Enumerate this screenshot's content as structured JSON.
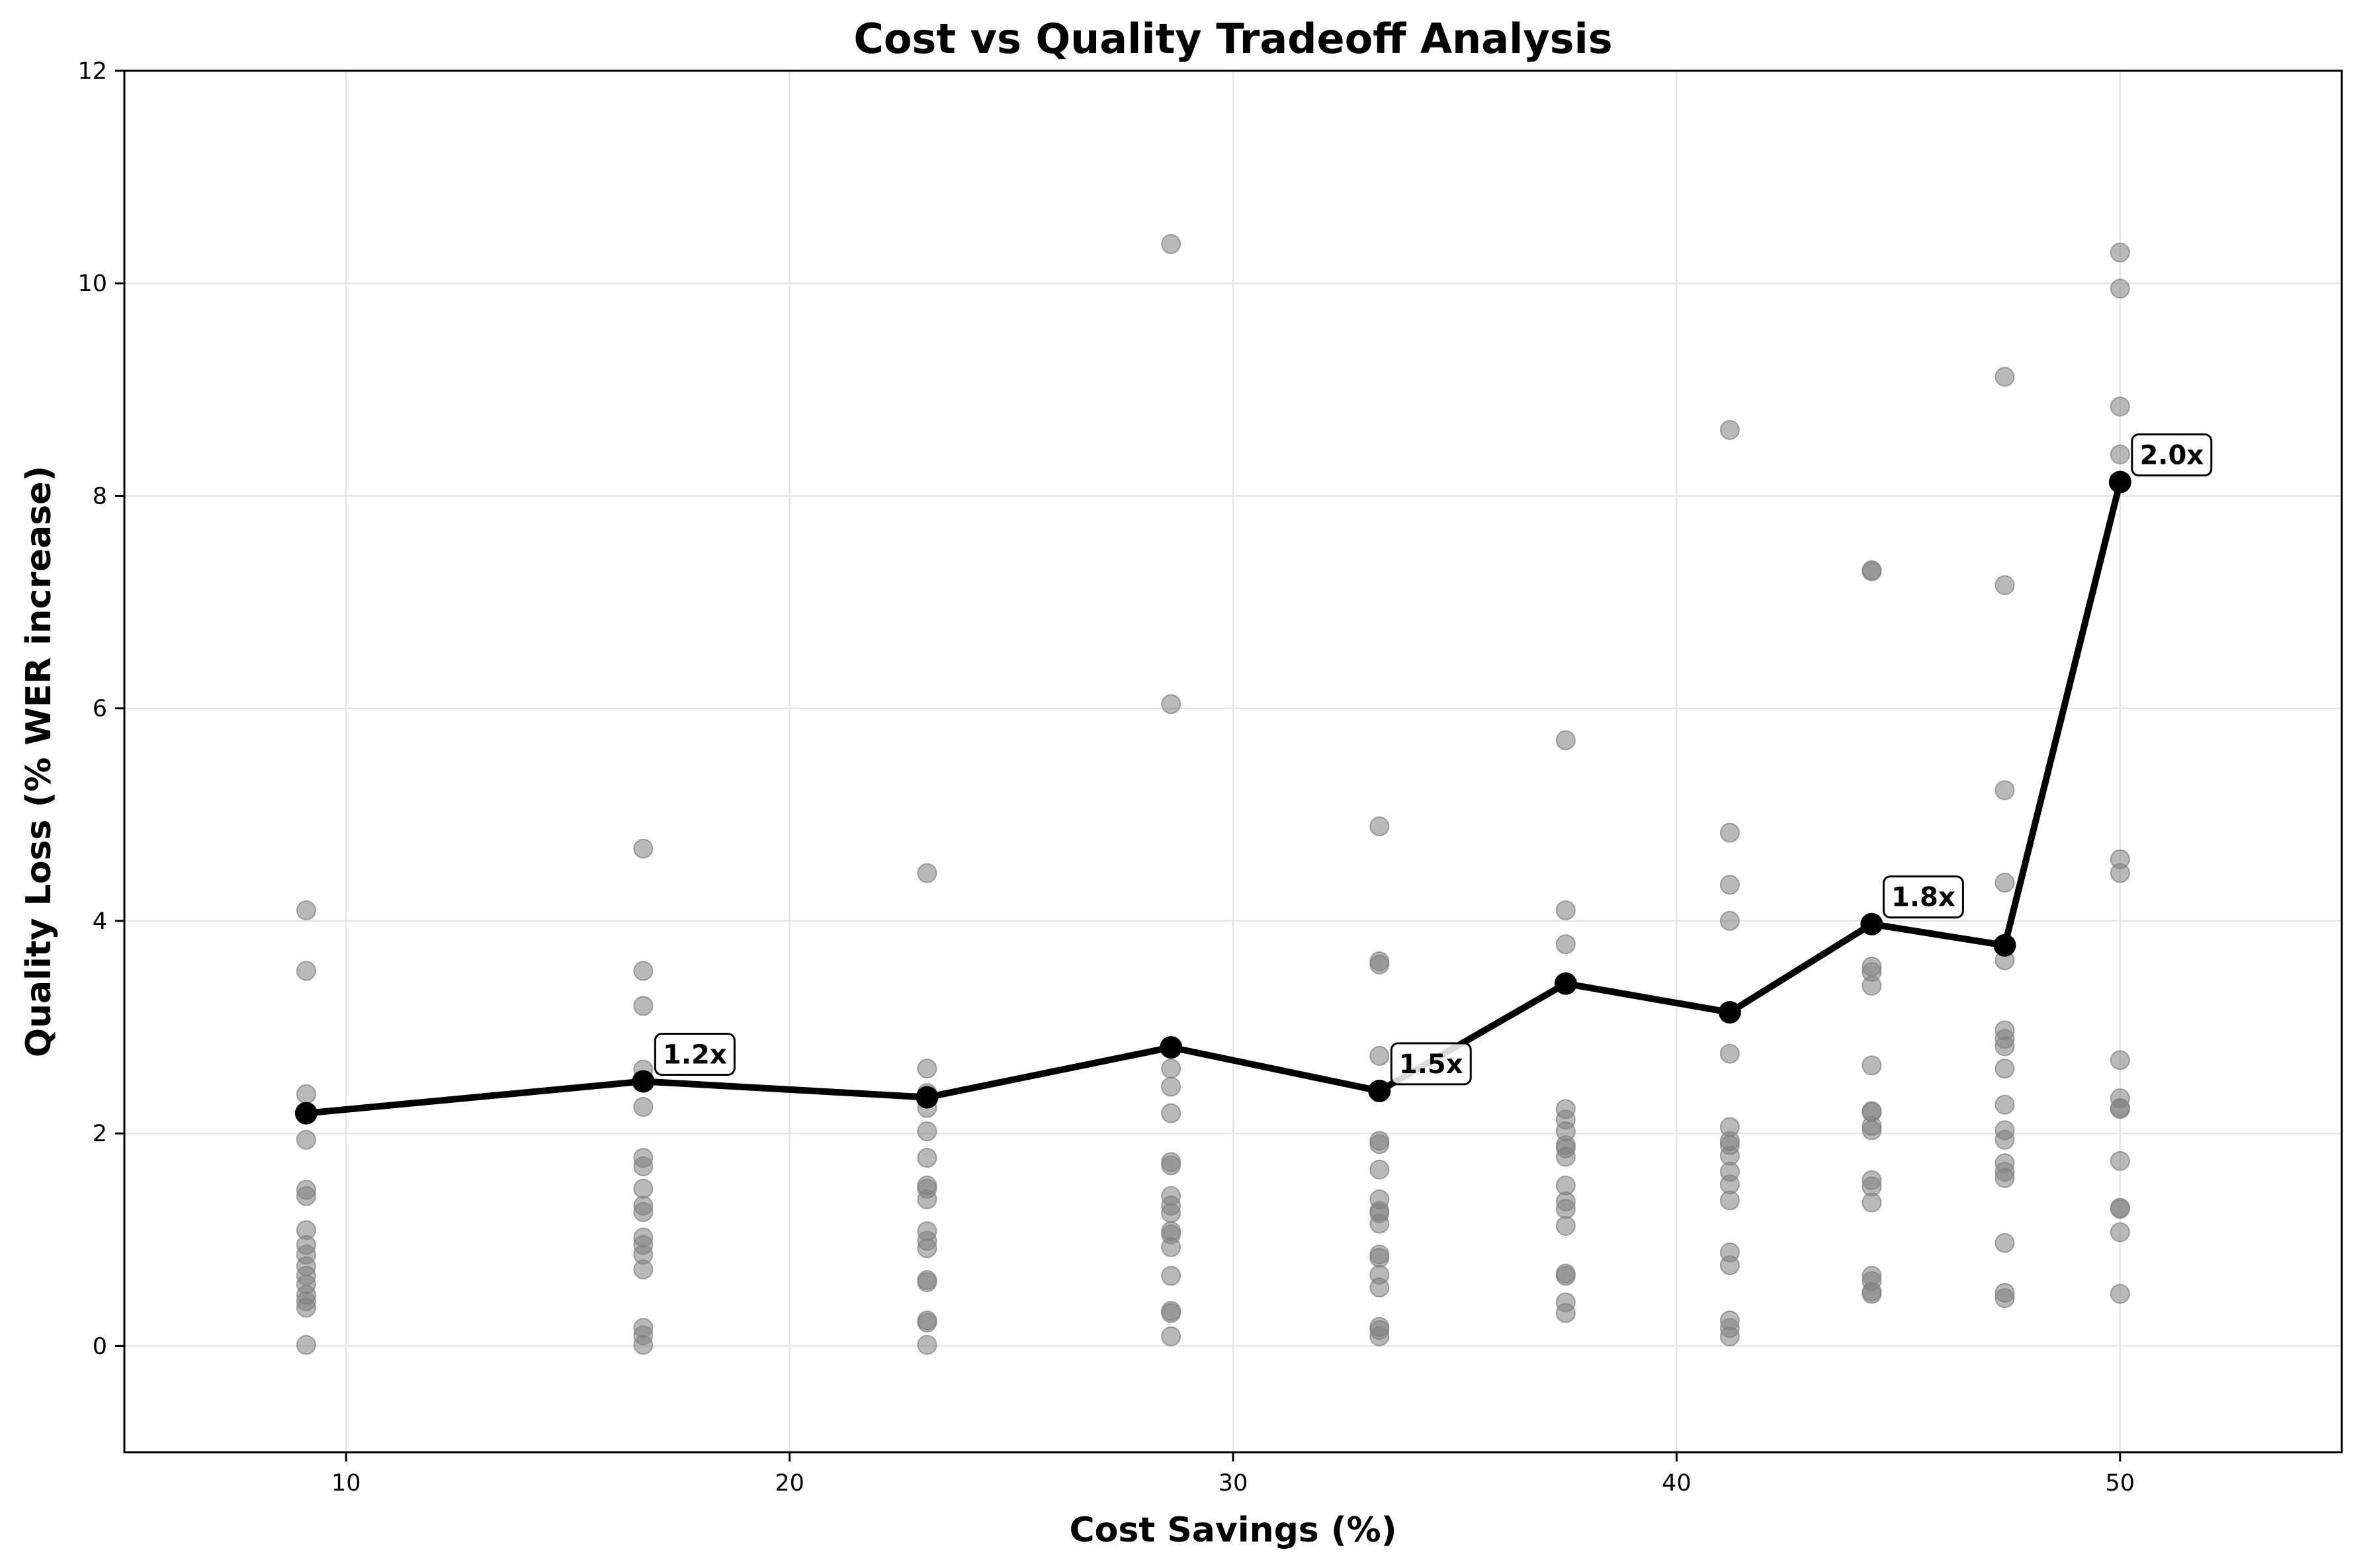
{
  "chart_data": {
    "type": "scatter",
    "title": "Cost vs Quality Tradeoff Analysis",
    "xlabel": "Cost Savings (%)",
    "ylabel": "Quality Loss (% WER increase)",
    "xlim": [
      5,
      55
    ],
    "ylim": [
      -1,
      12
    ],
    "xticks": [
      10,
      20,
      30,
      40,
      50
    ],
    "yticks": [
      0,
      2,
      4,
      6,
      8,
      10,
      12
    ],
    "grid": true,
    "legend": "none",
    "colors": {
      "scatter": "#808080",
      "line": "#000000",
      "grid": "#e5e5e5"
    },
    "series": [
      {
        "type": "scatter",
        "points": [
          [
            9.1,
            4.1
          ],
          [
            9.1,
            3.53
          ],
          [
            9.1,
            2.37
          ],
          [
            9.1,
            1.94
          ],
          [
            9.1,
            1.47
          ],
          [
            9.1,
            1.41
          ],
          [
            9.1,
            1.09
          ],
          [
            9.1,
            0.95
          ],
          [
            9.1,
            0.86
          ],
          [
            9.1,
            0.75
          ],
          [
            9.1,
            0.66
          ],
          [
            9.1,
            0.58
          ],
          [
            9.1,
            0.48
          ],
          [
            9.1,
            0.42
          ],
          [
            9.1,
            0.36
          ],
          [
            9.1,
            0.01
          ],
          [
            16.7,
            4.68
          ],
          [
            16.7,
            3.53
          ],
          [
            16.7,
            3.2
          ],
          [
            16.7,
            2.6
          ],
          [
            16.7,
            2.25
          ],
          [
            16.7,
            1.77
          ],
          [
            16.7,
            1.69
          ],
          [
            16.7,
            1.48
          ],
          [
            16.7,
            1.32
          ],
          [
            16.7,
            1.26
          ],
          [
            16.7,
            1.02
          ],
          [
            16.7,
            0.95
          ],
          [
            16.7,
            0.86
          ],
          [
            16.7,
            0.72
          ],
          [
            16.7,
            0.17
          ],
          [
            16.7,
            0.1
          ],
          [
            16.7,
            0.01
          ],
          [
            23.1,
            4.45
          ],
          [
            23.1,
            2.61
          ],
          [
            23.1,
            2.38
          ],
          [
            23.1,
            2.24
          ],
          [
            23.1,
            2.02
          ],
          [
            23.1,
            1.77
          ],
          [
            23.1,
            1.51
          ],
          [
            23.1,
            1.48
          ],
          [
            23.1,
            1.38
          ],
          [
            23.1,
            1.08
          ],
          [
            23.1,
            0.99
          ],
          [
            23.1,
            0.92
          ],
          [
            23.1,
            0.62
          ],
          [
            23.1,
            0.6
          ],
          [
            23.1,
            0.24
          ],
          [
            23.1,
            0.22
          ],
          [
            23.1,
            0.01
          ],
          [
            28.6,
            10.37
          ],
          [
            28.6,
            6.04
          ],
          [
            28.6,
            2.61
          ],
          [
            28.6,
            2.44
          ],
          [
            28.6,
            2.19
          ],
          [
            28.6,
            1.73
          ],
          [
            28.6,
            1.7
          ],
          [
            28.6,
            1.41
          ],
          [
            28.6,
            1.32
          ],
          [
            28.6,
            1.25
          ],
          [
            28.6,
            1.08
          ],
          [
            28.6,
            1.05
          ],
          [
            28.6,
            0.93
          ],
          [
            28.6,
            0.66
          ],
          [
            28.6,
            0.33
          ],
          [
            28.6,
            0.31
          ],
          [
            28.6,
            0.09
          ],
          [
            33.3,
            4.89
          ],
          [
            33.3,
            3.62
          ],
          [
            33.3,
            3.59
          ],
          [
            33.3,
            2.73
          ],
          [
            33.3,
            1.93
          ],
          [
            33.3,
            1.9
          ],
          [
            33.3,
            1.66
          ],
          [
            33.3,
            1.38
          ],
          [
            33.3,
            1.27
          ],
          [
            33.3,
            1.25
          ],
          [
            33.3,
            1.15
          ],
          [
            33.3,
            0.86
          ],
          [
            33.3,
            0.83
          ],
          [
            33.3,
            0.67
          ],
          [
            33.3,
            0.55
          ],
          [
            33.3,
            0.18
          ],
          [
            33.3,
            0.15
          ],
          [
            33.3,
            0.09
          ],
          [
            37.5,
            5.7
          ],
          [
            37.5,
            4.1
          ],
          [
            37.5,
            3.78
          ],
          [
            37.5,
            2.23
          ],
          [
            37.5,
            2.13
          ],
          [
            37.5,
            2.02
          ],
          [
            37.5,
            1.89
          ],
          [
            37.5,
            1.86
          ],
          [
            37.5,
            1.78
          ],
          [
            37.5,
            1.51
          ],
          [
            37.5,
            1.36
          ],
          [
            37.5,
            1.29
          ],
          [
            37.5,
            1.13
          ],
          [
            37.5,
            0.68
          ],
          [
            37.5,
            0.66
          ],
          [
            37.5,
            0.41
          ],
          [
            37.5,
            0.31
          ],
          [
            41.2,
            8.62
          ],
          [
            41.2,
            4.83
          ],
          [
            41.2,
            4.34
          ],
          [
            41.2,
            4.0
          ],
          [
            41.2,
            2.75
          ],
          [
            41.2,
            2.06
          ],
          [
            41.2,
            1.93
          ],
          [
            41.2,
            1.89
          ],
          [
            41.2,
            1.79
          ],
          [
            41.2,
            1.64
          ],
          [
            41.2,
            1.52
          ],
          [
            41.2,
            1.37
          ],
          [
            41.2,
            0.88
          ],
          [
            41.2,
            0.76
          ],
          [
            41.2,
            0.24
          ],
          [
            41.2,
            0.17
          ],
          [
            41.2,
            0.09
          ],
          [
            44.4,
            7.3
          ],
          [
            44.4,
            7.29
          ],
          [
            44.4,
            3.57
          ],
          [
            44.4,
            3.52
          ],
          [
            44.4,
            3.39
          ],
          [
            44.4,
            2.64
          ],
          [
            44.4,
            2.21
          ],
          [
            44.4,
            2.2
          ],
          [
            44.4,
            2.07
          ],
          [
            44.4,
            2.03
          ],
          [
            44.4,
            1.56
          ],
          [
            44.4,
            1.5
          ],
          [
            44.4,
            1.35
          ],
          [
            44.4,
            0.66
          ],
          [
            44.4,
            0.61
          ],
          [
            44.4,
            0.51
          ],
          [
            44.4,
            0.49
          ],
          [
            47.4,
            9.12
          ],
          [
            47.4,
            7.16
          ],
          [
            47.4,
            5.23
          ],
          [
            47.4,
            4.36
          ],
          [
            47.4,
            3.63
          ],
          [
            47.4,
            2.97
          ],
          [
            47.4,
            2.89
          ],
          [
            47.4,
            2.82
          ],
          [
            47.4,
            2.61
          ],
          [
            47.4,
            2.27
          ],
          [
            47.4,
            2.03
          ],
          [
            47.4,
            1.94
          ],
          [
            47.4,
            1.72
          ],
          [
            47.4,
            1.64
          ],
          [
            47.4,
            1.58
          ],
          [
            47.4,
            0.97
          ],
          [
            47.4,
            0.5
          ],
          [
            47.4,
            0.45
          ],
          [
            50.0,
            10.29
          ],
          [
            50.0,
            9.95
          ],
          [
            50.0,
            8.84
          ],
          [
            50.0,
            8.39
          ],
          [
            50.0,
            4.58
          ],
          [
            50.0,
            4.45
          ],
          [
            50.0,
            2.69
          ],
          [
            50.0,
            2.33
          ],
          [
            50.0,
            2.24
          ],
          [
            50.0,
            2.23
          ],
          [
            50.0,
            1.74
          ],
          [
            50.0,
            1.3
          ],
          [
            50.0,
            1.29
          ],
          [
            50.0,
            1.07
          ],
          [
            50.0,
            0.49
          ]
        ]
      },
      {
        "type": "line",
        "x": [
          9.1,
          16.7,
          23.1,
          28.6,
          33.3,
          37.5,
          41.2,
          44.4,
          47.4,
          50.0
        ],
        "y": [
          2.19,
          2.49,
          2.34,
          2.81,
          2.4,
          3.41,
          3.14,
          3.97,
          3.77,
          8.13
        ]
      }
    ],
    "annotations": [
      {
        "text": "1.2x",
        "x": 16.7,
        "y": 2.49
      },
      {
        "text": "1.5x",
        "x": 33.3,
        "y": 2.4
      },
      {
        "text": "1.8x",
        "x": 44.4,
        "y": 3.97
      },
      {
        "text": "2.0x",
        "x": 50.0,
        "y": 8.13
      }
    ]
  }
}
